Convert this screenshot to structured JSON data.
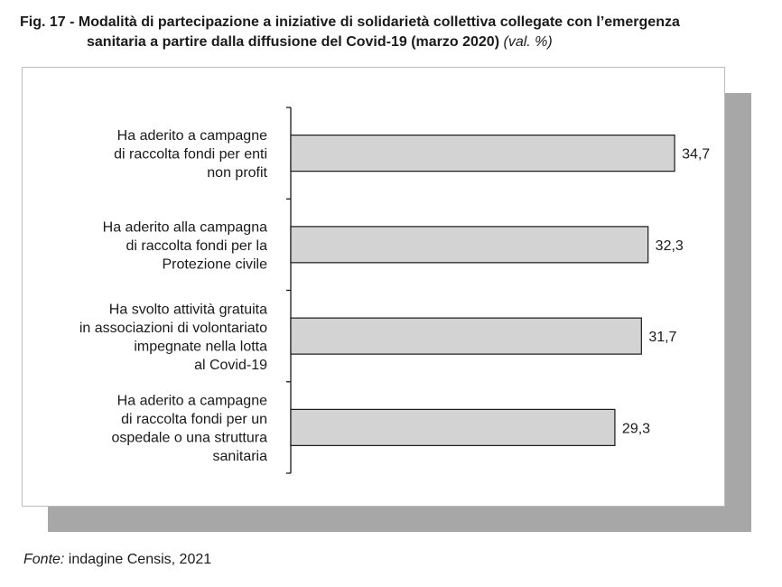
{
  "figure": {
    "title_line1": "Fig. 17 - Modalità di partecipazione a iniziative di solidarietà collettiva collegate con l’emergenza",
    "title_line2": "sanitaria a partire dalla diffusione del Covid-19 (marzo 2020)",
    "unit": "(val. %)"
  },
  "source": {
    "label": "Fonte:",
    "text": " indagine Censis, 2021"
  },
  "colors": {
    "bar_fill": "#d3d3d3",
    "bar_stroke": "#1a1a1a",
    "shadow": "#a7a7a7"
  },
  "chart_data": {
    "type": "bar",
    "orientation": "horizontal",
    "categories": [
      [
        "Ha aderito a campagne",
        "di raccolta fondi per enti",
        "non profit"
      ],
      [
        "Ha aderito alla campagna",
        "di raccolta fondi per la",
        "Protezione civile"
      ],
      [
        "Ha svolto attività gratuita",
        "in associazioni di volontariato",
        "impegnate nella lotta",
        "al Covid-19"
      ],
      [
        "Ha aderito a campagne",
        "di raccolta fondi per un",
        "ospedale o una struttura",
        "sanitaria"
      ]
    ],
    "values": [
      34.7,
      32.3,
      31.7,
      29.3
    ],
    "value_labels": [
      "34,7",
      "32,3",
      "31,7",
      "29,3"
    ],
    "xlim": [
      0,
      40
    ],
    "grid": false,
    "legend": "none"
  }
}
